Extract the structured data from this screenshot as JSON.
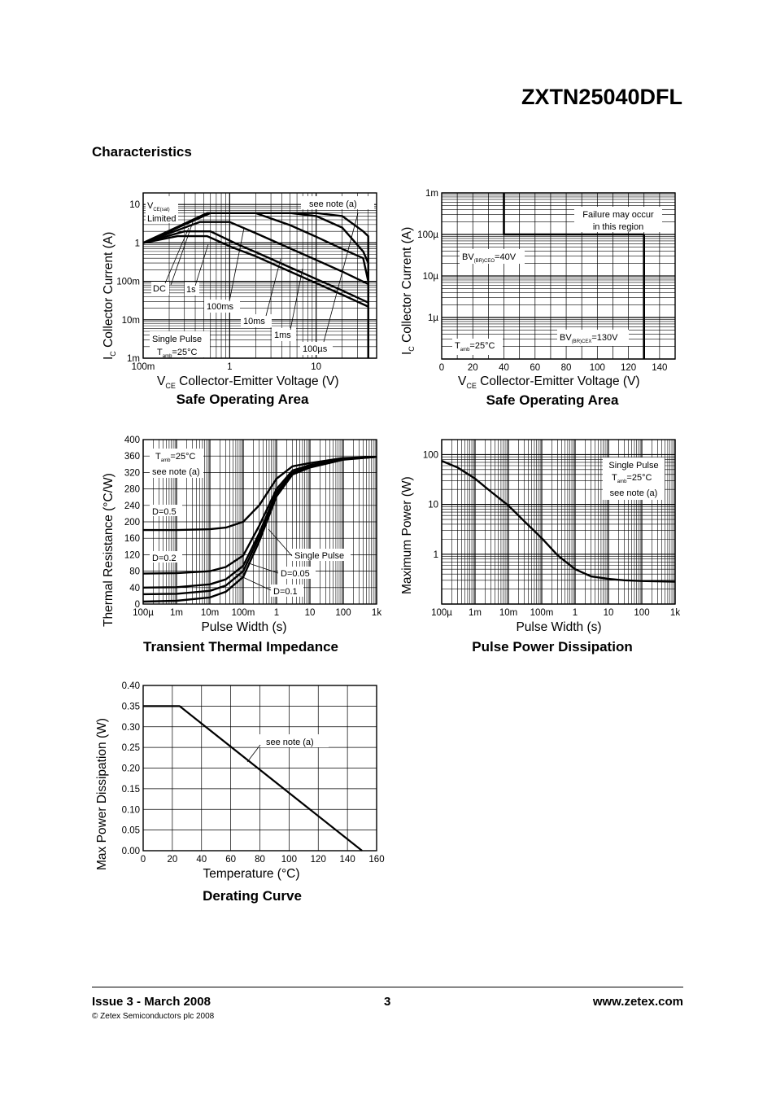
{
  "header": {
    "part_number": "ZXTN25040DFL",
    "section": "Characteristics"
  },
  "footer": {
    "issue": "Issue 3 - March 2008",
    "copyright": "© Zetex Semiconductors plc 2008",
    "page": "3",
    "website": "www.zetex.com"
  },
  "chart_data": [
    {
      "id": "soa_log",
      "type": "line",
      "title": "Safe Operating Area",
      "xlabel_main": "V",
      "xlabel_sub": "CE",
      "xlabel_rest": "  Collector-Emitter Voltage (V)",
      "ylabel_main": "I",
      "ylabel_sub": "C",
      "ylabel_rest": "  Collector Current (A)",
      "xscale": "log",
      "yscale": "log",
      "xlim": [
        0.1,
        50
      ],
      "ylim": [
        0.001,
        20
      ],
      "grid": true,
      "xticks": [
        {
          "v": 0.1,
          "label": "100m"
        },
        {
          "v": 1,
          "label": "1"
        },
        {
          "v": 10,
          "label": "10"
        }
      ],
      "yticks": [
        {
          "v": 10,
          "label": "10"
        },
        {
          "v": 1,
          "label": "1"
        },
        {
          "v": 0.1,
          "label": "100m"
        },
        {
          "v": 0.01,
          "label": "10m"
        },
        {
          "v": 0.001,
          "label": "1m"
        }
      ],
      "annotations": {
        "vce_limited_1": "V",
        "vce_limited_sub": "CE(sat)",
        "vce_limited_2": "Limited",
        "see_note": "see note (a)",
        "dc": "DC",
        "s1": "1s",
        "ms100": "100ms",
        "ms10": "10ms",
        "ms1": "1ms",
        "us100": "100µs",
        "single_pulse": "Single Pulse",
        "tamb_T": "T",
        "tamb_sub": "amb",
        "tamb_rest": "=25°C"
      },
      "series": [
        {
          "name": "DC",
          "x": [
            0.1,
            0.25,
            0.55,
            1.1,
            2,
            5,
            10,
            20,
            40
          ],
          "y": [
            1,
            1.5,
            1.5,
            0.75,
            0.45,
            0.18,
            0.09,
            0.045,
            0.022
          ]
        },
        {
          "name": "1s",
          "x": [
            0.1,
            0.3,
            0.6,
            1.2,
            2,
            5,
            10,
            20,
            40
          ],
          "y": [
            1,
            2,
            2,
            0.95,
            0.58,
            0.23,
            0.115,
            0.058,
            0.028
          ]
        },
        {
          "name": "100ms",
          "x": [
            0.1,
            0.45,
            1,
            2,
            5,
            10,
            20,
            40
          ],
          "y": [
            1,
            3.5,
            3.5,
            1.8,
            0.72,
            0.36,
            0.18,
            0.085
          ]
        },
        {
          "name": "10ms",
          "x": [
            0.1,
            0.55,
            1.2,
            2,
            5,
            10,
            20,
            35,
            40
          ],
          "y": [
            1,
            6,
            6,
            6,
            2.9,
            1.45,
            0.7,
            0.4,
            0.1
          ]
        },
        {
          "name": "1ms",
          "x": [
            0.1,
            0.6,
            5,
            10,
            20,
            35,
            40,
            40
          ],
          "y": [
            1,
            6,
            6,
            5,
            2.5,
            0.6,
            0.3,
            0.001
          ]
        },
        {
          "name": "100µs",
          "x": [
            0.1,
            0.6,
            10,
            20,
            35,
            40,
            40
          ],
          "y": [
            1,
            6,
            6,
            5,
            2,
            1.5,
            0.001
          ]
        }
      ]
    },
    {
      "id": "soa_lin",
      "type": "line",
      "title": "Safe Operating Area",
      "xlabel_main": "V",
      "xlabel_sub": "CE",
      "xlabel_rest": "  Collector-Emitter Voltage (V)",
      "ylabel_main": "I",
      "ylabel_sub": "C",
      "ylabel_rest": "  Collector Current (A)",
      "xscale": "linear",
      "yscale": "log",
      "xlim": [
        0,
        150
      ],
      "ylim": [
        1e-07,
        0.001
      ],
      "grid": true,
      "xticks": [
        {
          "v": 0,
          "label": "0"
        },
        {
          "v": 20,
          "label": "20"
        },
        {
          "v": 40,
          "label": "40"
        },
        {
          "v": 60,
          "label": "60"
        },
        {
          "v": 80,
          "label": "80"
        },
        {
          "v": 100,
          "label": "100"
        },
        {
          "v": 120,
          "label": "120"
        },
        {
          "v": 140,
          "label": "140"
        }
      ],
      "yticks": [
        {
          "v": 0.001,
          "label": "1m"
        },
        {
          "v": 0.0001,
          "label": "100µ"
        },
        {
          "v": 1e-05,
          "label": "10µ"
        },
        {
          "v": 1e-06,
          "label": "1µ"
        }
      ],
      "annotations": {
        "failure_1": "Failure may occur",
        "failure_2": "in this region",
        "bvceo_1": "BV",
        "bvceo_sub": "(BR)CEO",
        "bvceo_rest": "=40V",
        "bvcex_1": "BV",
        "bvcex_sub": "(BR)CEX",
        "bvcex_rest": "=130V",
        "tamb_T": "T",
        "tamb_sub": "amb",
        "tamb_rest": "=25°C"
      },
      "series": [
        {
          "name": "BV(BR)CEO",
          "x": [
            40,
            40,
            130
          ],
          "y": [
            0.001,
            0.0001,
            0.0001
          ]
        },
        {
          "name": "BV(BR)CEX",
          "x": [
            130,
            130
          ],
          "y": [
            0.0001,
            1e-07
          ]
        }
      ]
    },
    {
      "id": "thermal",
      "type": "line",
      "title": "Transient Thermal Impedance",
      "xlabel": "Pulse Width (s)",
      "ylabel": "Thermal Resistance (°C/W)",
      "xscale": "log",
      "yscale": "linear",
      "xlim": [
        0.0001,
        1000
      ],
      "ylim": [
        0,
        400
      ],
      "grid": true,
      "xticks": [
        {
          "v": 0.0001,
          "label": "100µ"
        },
        {
          "v": 0.001,
          "label": "1m"
        },
        {
          "v": 0.01,
          "label": "10m"
        },
        {
          "v": 0.1,
          "label": "100m"
        },
        {
          "v": 1,
          "label": "1"
        },
        {
          "v": 10,
          "label": "10"
        },
        {
          "v": 100,
          "label": "100"
        },
        {
          "v": 1000,
          "label": "1k"
        }
      ],
      "yticks": [
        {
          "v": 0,
          "label": "0"
        },
        {
          "v": 40,
          "label": "40"
        },
        {
          "v": 80,
          "label": "80"
        },
        {
          "v": 120,
          "label": "120"
        },
        {
          "v": 160,
          "label": "160"
        },
        {
          "v": 200,
          "label": "200"
        },
        {
          "v": 240,
          "label": "240"
        },
        {
          "v": 280,
          "label": "280"
        },
        {
          "v": 320,
          "label": "320"
        },
        {
          "v": 360,
          "label": "360"
        },
        {
          "v": 400,
          "label": "400"
        }
      ],
      "annotations": {
        "tamb_T": "T",
        "tamb_sub": "amb",
        "tamb_rest": "=25°C",
        "see_note": "see note (a)",
        "d05": "D=0.5",
        "d02": "D=0.2",
        "single_pulse": "Single Pulse",
        "d005": "D=0.05",
        "d01": "D=0.1"
      },
      "series": [
        {
          "name": "D=0.5",
          "x": [
            0.0001,
            0.001,
            0.01,
            0.03,
            0.1,
            0.3,
            1,
            3,
            10,
            100,
            1000
          ],
          "y": [
            180,
            180,
            182,
            186,
            200,
            240,
            305,
            335,
            343,
            355,
            358
          ]
        },
        {
          "name": "D=0.2",
          "x": [
            0.0001,
            0.001,
            0.01,
            0.03,
            0.1,
            0.3,
            1,
            3,
            10,
            100,
            1000
          ],
          "y": [
            74,
            75,
            80,
            90,
            118,
            190,
            280,
            325,
            338,
            353,
            358
          ]
        },
        {
          "name": "D=0.1",
          "x": [
            0.0001,
            0.001,
            0.01,
            0.03,
            0.1,
            0.3,
            1,
            3,
            10,
            100,
            1000
          ],
          "y": [
            40,
            41,
            48,
            60,
            93,
            172,
            272,
            320,
            335,
            352,
            358
          ]
        },
        {
          "name": "D=0.05",
          "x": [
            0.0001,
            0.001,
            0.01,
            0.03,
            0.1,
            0.3,
            1,
            3,
            10,
            100,
            1000
          ],
          "y": [
            24,
            25,
            32,
            45,
            80,
            163,
            268,
            318,
            334,
            352,
            358
          ]
        },
        {
          "name": "Single Pulse",
          "x": [
            0.0001,
            0.001,
            0.01,
            0.03,
            0.1,
            0.3,
            1,
            3,
            10,
            100,
            1000
          ],
          "y": [
            6,
            8,
            16,
            30,
            66,
            152,
            262,
            315,
            332,
            351,
            358
          ]
        }
      ]
    },
    {
      "id": "pulse_power",
      "type": "line",
      "title": "Pulse Power Dissipation",
      "xlabel": "Pulse Width (s)",
      "ylabel": "Maximum Power (W)",
      "xscale": "log",
      "yscale": "log",
      "xlim": [
        0.0001,
        1000
      ],
      "ylim": [
        0.1,
        200
      ],
      "grid": true,
      "xticks": [
        {
          "v": 0.0001,
          "label": "100µ"
        },
        {
          "v": 0.001,
          "label": "1m"
        },
        {
          "v": 0.01,
          "label": "10m"
        },
        {
          "v": 0.1,
          "label": "100m"
        },
        {
          "v": 1,
          "label": "1"
        },
        {
          "v": 10,
          "label": "10"
        },
        {
          "v": 100,
          "label": "100"
        },
        {
          "v": 1000,
          "label": "1k"
        }
      ],
      "yticks": [
        {
          "v": 100,
          "label": "100"
        },
        {
          "v": 10,
          "label": "10"
        },
        {
          "v": 1,
          "label": "1"
        }
      ],
      "annotations": {
        "single_pulse": "Single Pulse",
        "tamb_T": "T",
        "tamb_sub": "amb",
        "tamb_rest": "=25°C",
        "see_note": "see note (a)"
      },
      "series": [
        {
          "name": "Single Pulse",
          "x": [
            0.0001,
            0.0003,
            0.001,
            0.003,
            0.01,
            0.03,
            0.1,
            0.3,
            1,
            3,
            10,
            30,
            100,
            1000
          ],
          "y": [
            75,
            55,
            33,
            18,
            9.5,
            4.6,
            2.1,
            0.95,
            0.5,
            0.36,
            0.32,
            0.3,
            0.29,
            0.28
          ]
        }
      ]
    },
    {
      "id": "derating",
      "type": "line",
      "title": "Derating Curve",
      "xlabel": "Temperature (°C)",
      "ylabel": "Max Power Dissipation (W)",
      "xscale": "linear",
      "yscale": "linear",
      "xlim": [
        0,
        160
      ],
      "ylim": [
        0,
        0.4
      ],
      "grid": true,
      "xticks": [
        {
          "v": 0,
          "label": "0"
        },
        {
          "v": 20,
          "label": "20"
        },
        {
          "v": 40,
          "label": "40"
        },
        {
          "v": 60,
          "label": "60"
        },
        {
          "v": 80,
          "label": "80"
        },
        {
          "v": 100,
          "label": "100"
        },
        {
          "v": 120,
          "label": "120"
        },
        {
          "v": 140,
          "label": "140"
        },
        {
          "v": 160,
          "label": "160"
        }
      ],
      "yticks": [
        {
          "v": 0,
          "label": "0.00"
        },
        {
          "v": 0.05,
          "label": "0.05"
        },
        {
          "v": 0.1,
          "label": "0.10"
        },
        {
          "v": 0.15,
          "label": "0.15"
        },
        {
          "v": 0.2,
          "label": "0.20"
        },
        {
          "v": 0.25,
          "label": "0.25"
        },
        {
          "v": 0.3,
          "label": "0.30"
        },
        {
          "v": 0.35,
          "label": "0.35"
        },
        {
          "v": 0.4,
          "label": "0.40"
        }
      ],
      "annotations": {
        "see_note": "see note (a)"
      },
      "series": [
        {
          "name": "Derating",
          "x": [
            0,
            25,
            150
          ],
          "y": [
            0.35,
            0.35,
            0
          ]
        }
      ]
    }
  ]
}
